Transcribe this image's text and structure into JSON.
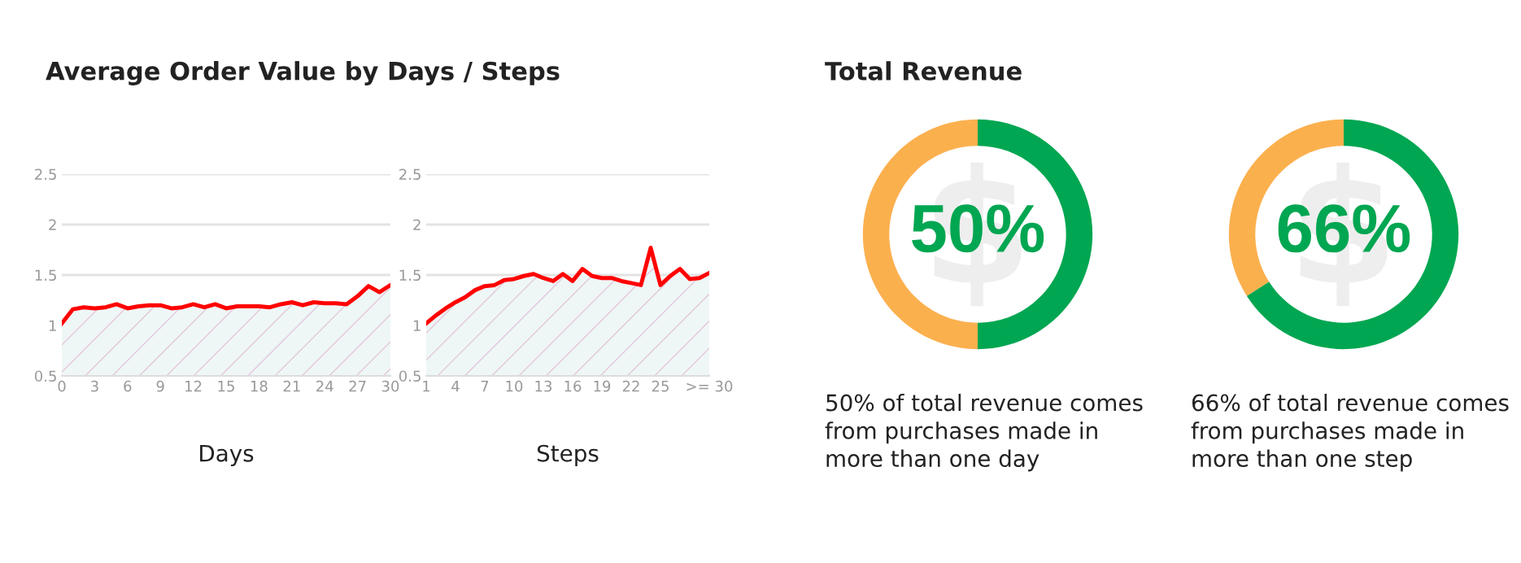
{
  "chart_data": [
    {
      "type": "area",
      "title": "Average Order Value by Days / Steps",
      "xlabel": "Days",
      "x": [
        0,
        1,
        2,
        3,
        4,
        5,
        6,
        7,
        8,
        9,
        10,
        11,
        12,
        13,
        14,
        15,
        16,
        17,
        18,
        19,
        20,
        21,
        22,
        23,
        24,
        25,
        26,
        27,
        28,
        29,
        30
      ],
      "series": [
        {
          "color": "#ff0000",
          "values": [
            1.02,
            1.16,
            1.18,
            1.17,
            1.18,
            1.21,
            1.17,
            1.19,
            1.2,
            1.2,
            1.17,
            1.18,
            1.21,
            1.18,
            1.21,
            1.17,
            1.19,
            1.19,
            1.19,
            1.18,
            1.21,
            1.23,
            1.2,
            1.23,
            1.22,
            1.22,
            1.21,
            1.29,
            1.39,
            1.33,
            1.4
          ]
        }
      ],
      "xlim": [
        0,
        30
      ],
      "xticks": [
        0,
        3,
        6,
        9,
        12,
        15,
        18,
        21,
        24,
        27,
        30
      ],
      "ylim": [
        0.5,
        2.5
      ],
      "yticks": [
        0.5,
        1,
        1.5,
        2,
        2.5
      ],
      "grid": "y"
    },
    {
      "type": "area",
      "xlabel": "Steps",
      "categories": [
        "1",
        null,
        null,
        "4",
        null,
        null,
        "7",
        null,
        null,
        "10",
        null,
        null,
        "13",
        null,
        null,
        "16",
        null,
        null,
        "19",
        null,
        null,
        "22",
        null,
        null,
        "25",
        null,
        null,
        null,
        null,
        ">= 30"
      ],
      "series": [
        {
          "color": "#ff0000",
          "values": [
            1.02,
            1.1,
            1.17,
            1.23,
            1.28,
            1.35,
            1.39,
            1.4,
            1.45,
            1.46,
            1.49,
            1.51,
            1.47,
            1.44,
            1.51,
            1.44,
            1.56,
            1.49,
            1.47,
            1.47,
            1.44,
            1.42,
            1.4,
            1.77,
            1.4,
            1.49,
            1.56,
            1.46,
            1.47,
            1.52
          ]
        }
      ],
      "ylim": [
        0.5,
        2.5
      ],
      "yticks": [
        0.5,
        1,
        1.5,
        2,
        2.5
      ],
      "grid": "y"
    },
    {
      "type": "donut",
      "title": "Total Revenue",
      "categories": [
        null,
        null
      ],
      "values": [
        50,
        50
      ],
      "colors": [
        "#00a651",
        "#fbb04e"
      ],
      "annotations": [
        "50%",
        "50% of total revenue comes\nfrom purchases made in\nmore than one day"
      ]
    },
    {
      "type": "donut",
      "categories": [
        null,
        null
      ],
      "values": [
        66,
        34
      ],
      "colors": [
        "#00a651",
        "#fbb04e"
      ],
      "annotations": [
        "66%",
        "66% of total revenue comes\nfrom purchases made in\nmore than one step"
      ]
    }
  ]
}
